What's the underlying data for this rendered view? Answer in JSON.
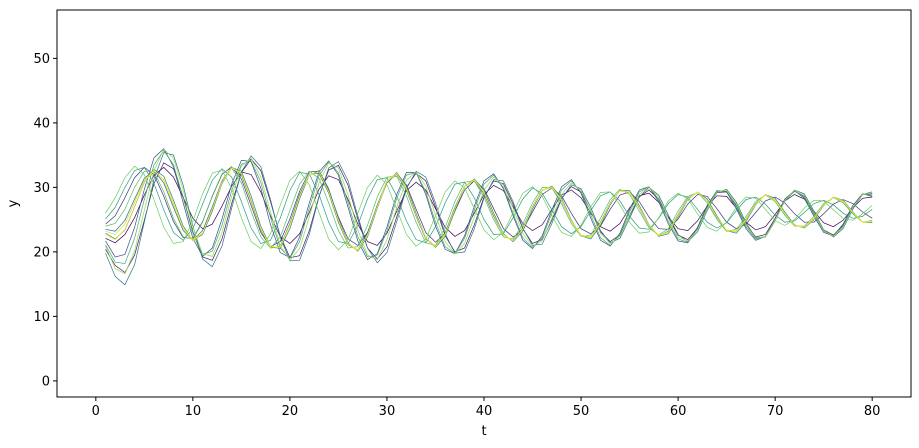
{
  "chart_data": {
    "type": "line",
    "title": "",
    "xlabel": "t",
    "ylabel": "y",
    "xlim": [
      -4,
      84
    ],
    "ylim": [
      -2.5,
      57.5
    ],
    "xticks": [
      0,
      10,
      20,
      30,
      40,
      50,
      60,
      70,
      80
    ],
    "yticks": [
      0,
      10,
      20,
      30,
      40,
      50
    ],
    "grid": false,
    "legend": "none",
    "colormap": "viridis",
    "colormap_stops": [
      "#440154",
      "#3b528b",
      "#21918c",
      "#5ec962",
      "#fde725"
    ],
    "x": [
      1,
      2,
      3,
      4,
      5,
      6,
      7,
      8,
      9,
      10,
      11,
      12,
      13,
      14,
      15,
      16,
      17,
      18,
      19,
      20,
      21,
      22,
      23,
      24,
      25,
      26,
      27,
      28,
      29,
      30,
      31,
      32,
      33,
      34,
      35,
      36,
      37,
      38,
      39,
      40,
      41,
      42,
      43,
      44,
      45,
      46,
      47,
      48,
      49,
      50,
      51,
      52,
      53,
      54,
      55,
      56,
      57,
      58,
      59,
      60,
      61,
      62,
      63,
      64,
      65,
      66,
      67,
      68,
      69,
      70,
      71,
      72,
      73,
      74,
      75,
      76,
      77,
      78,
      79,
      80
    ],
    "series": [
      {
        "values": [
          22.1,
          21.4,
          22.7,
          25.3,
          28.8,
          31.9,
          33.1,
          31.6,
          28.4,
          25.2,
          23.6,
          24.3,
          27.1,
          30.2,
          32.4,
          32.0,
          29.3,
          25.6,
          22.4,
          21.3,
          22.8,
          26.1,
          29.7,
          31.8,
          31.2,
          28.1,
          24.3,
          21.6,
          21.0,
          22.9,
          26.3,
          29.5,
          30.8,
          29.6,
          26.7,
          23.8,
          22.4,
          23.3,
          26.0,
          28.9,
          30.3,
          29.5,
          27.0,
          24.4,
          23.3,
          24.2,
          26.6,
          28.8,
          29.6,
          28.4,
          26.0,
          23.9,
          23.2,
          24.4,
          26.8,
          28.7,
          29.1,
          27.7,
          25.4,
          23.6,
          23.3,
          24.8,
          27.1,
          28.7,
          28.6,
          26.8,
          24.6,
          23.4,
          23.9,
          25.8,
          27.9,
          28.9,
          28.2,
          26.3,
          24.5,
          23.9,
          24.9,
          26.8,
          28.3,
          28.5
        ]
      },
      {
        "values": [
          20.4,
          17.9,
          16.8,
          19.5,
          24.9,
          30.6,
          33.8,
          32.9,
          28.5,
          23.1,
          19.2,
          18.7,
          22.0,
          27.5,
          32.3,
          34.4,
          32.6,
          27.8,
          22.5,
          19.1,
          19.4,
          23.3,
          28.6,
          32.7,
          33.4,
          30.3,
          25.1,
          20.6,
          18.9,
          20.8,
          25.4,
          30.0,
          32.2,
          31.0,
          27.0,
          22.5,
          20.0,
          20.6,
          24.2,
          28.5,
          31.0,
          30.6,
          27.4,
          23.6,
          21.3,
          21.9,
          24.9,
          28.3,
          30.1,
          29.3,
          26.4,
          23.1,
          21.6,
          22.6,
          25.6,
          28.5,
          29.6,
          28.2,
          25.3,
          22.6,
          21.9,
          23.7,
          26.9,
          29.2,
          29.3,
          27.2,
          24.2,
          22.3,
          22.7,
          25.2,
          28.0,
          29.4,
          28.6,
          26.0,
          23.4,
          22.6,
          24.1,
          26.9,
          28.9,
          29.0
        ]
      },
      {
        "values": [
          24.3,
          25.6,
          28.4,
          31.5,
          33.1,
          32.0,
          28.6,
          24.7,
          22.2,
          22.1,
          24.7,
          28.6,
          32.0,
          33.2,
          31.3,
          27.2,
          23.0,
          20.8,
          21.6,
          25.1,
          29.4,
          32.4,
          32.5,
          29.6,
          25.4,
          22.0,
          21.0,
          23.0,
          27.0,
          30.7,
          32.1,
          30.4,
          26.6,
          23.0,
          21.5,
          22.9,
          26.3,
          29.6,
          31.0,
          29.8,
          26.7,
          23.6,
          22.3,
          23.4,
          26.2,
          28.9,
          29.9,
          28.7,
          26.0,
          23.6,
          22.8,
          24.0,
          26.6,
          28.8,
          29.3,
          27.8,
          25.4,
          23.6,
          23.5,
          25.1,
          27.4,
          28.9,
          28.6,
          26.7,
          24.6,
          23.6,
          24.3,
          26.1,
          27.9,
          28.5,
          27.6,
          25.9,
          24.6,
          24.6,
          25.9,
          27.4,
          28.1,
          27.5,
          26.2,
          25.2
        ]
      },
      {
        "values": [
          21.7,
          19.2,
          19.6,
          23.8,
          29.7,
          34.6,
          36.0,
          33.2,
          27.6,
          22.1,
          19.3,
          20.6,
          25.1,
          30.5,
          34.2,
          34.0,
          29.9,
          24.2,
          19.9,
          19.1,
          22.3,
          27.6,
          32.4,
          34.1,
          31.9,
          26.9,
          21.7,
          18.8,
          19.7,
          23.9,
          28.9,
          32.3,
          32.3,
          28.9,
          24.0,
          20.4,
          19.7,
          22.5,
          27.1,
          31.0,
          32.1,
          29.8,
          25.6,
          21.8,
          20.5,
          22.5,
          26.5,
          30.1,
          31.2,
          29.1,
          25.2,
          21.8,
          20.9,
          22.9,
          26.6,
          29.6,
          30.1,
          27.8,
          24.3,
          21.7,
          21.4,
          23.8,
          27.2,
          29.5,
          29.3,
          26.7,
          23.6,
          21.8,
          22.4,
          25.2,
          28.2,
          29.5,
          28.3,
          25.5,
          23.0,
          22.5,
          24.3,
          27.2,
          29.0,
          28.6
        ]
      },
      {
        "values": [
          23.5,
          23.2,
          24.9,
          28.2,
          31.4,
          32.6,
          30.7,
          26.9,
          23.3,
          21.8,
          23.3,
          27.0,
          31.0,
          33.1,
          31.9,
          27.9,
          23.4,
          20.6,
          20.9,
          24.4,
          28.9,
          32.0,
          32.2,
          29.1,
          24.6,
          21.1,
          20.3,
          22.9,
          27.3,
          31.0,
          32.0,
          29.6,
          25.5,
          22.0,
          20.9,
          23.0,
          26.9,
          30.2,
          31.0,
          29.0,
          25.5,
          22.6,
          21.8,
          23.7,
          27.0,
          29.6,
          30.0,
          27.9,
          24.8,
          22.5,
          22.3,
          24.6,
          27.6,
          29.5,
          29.2,
          26.8,
          24.0,
          22.5,
          23.2,
          25.8,
          28.3,
          29.2,
          27.9,
          25.3,
          23.3,
          23.2,
          25.1,
          27.5,
          28.8,
          28.0,
          25.9,
          24.1,
          23.8,
          25.2,
          27.3,
          28.4,
          27.8,
          26.0,
          24.6,
          24.7
        ]
      },
      {
        "values": [
          19.8,
          16.2,
          14.9,
          18.0,
          24.6,
          31.3,
          35.4,
          35.0,
          30.3,
          24.0,
          18.9,
          17.7,
          20.9,
          26.8,
          32.4,
          34.9,
          33.2,
          28.1,
          22.3,
          18.6,
          18.7,
          22.7,
          28.5,
          33.0,
          34.0,
          31.0,
          25.6,
          20.6,
          18.3,
          19.9,
          24.7,
          29.8,
          32.5,
          31.6,
          27.6,
          22.8,
          19.8,
          20.0,
          23.6,
          28.3,
          31.2,
          31.0,
          27.8,
          23.7,
          21.0,
          21.2,
          24.4,
          28.2,
          30.4,
          29.8,
          26.9,
          23.3,
          21.4,
          22.1,
          25.2,
          28.5,
          30.0,
          28.8,
          25.7,
          22.7,
          21.6,
          23.1,
          26.4,
          29.2,
          29.7,
          27.7,
          24.5,
          22.2,
          22.3,
          24.8,
          27.9,
          29.6,
          29.0,
          26.3,
          23.4,
          22.3,
          23.6,
          26.6,
          28.9,
          29.3
        ]
      },
      {
        "values": [
          22.9,
          22.0,
          23.4,
          27.0,
          30.8,
          32.8,
          31.7,
          28.0,
          24.0,
          21.8,
          22.7,
          26.3,
          30.6,
          33.1,
          32.5,
          28.7,
          24.0,
          20.8,
          20.5,
          23.6,
          28.2,
          31.9,
          32.6,
          29.8,
          25.2,
          21.4,
          20.1,
          22.3,
          26.8,
          30.9,
          32.3,
          30.2,
          26.0,
          22.2,
          20.7,
          22.4,
          26.4,
          30.1,
          31.3,
          29.6,
          26.0,
          22.8,
          21.6,
          23.2,
          26.6,
          29.5,
          30.2,
          28.3,
          25.0,
          22.5,
          22.0,
          24.1,
          27.3,
          29.5,
          29.5,
          27.2,
          24.2,
          22.4,
          22.8,
          25.4,
          28.1,
          29.3,
          28.2,
          25.6,
          23.3,
          22.9,
          24.7,
          27.3,
          28.9,
          28.3,
          26.2,
          24.2,
          23.7,
          25.0,
          27.2,
          28.5,
          28.0,
          26.2,
          24.6,
          24.5
        ]
      },
      {
        "values": [
          25.1,
          26.9,
          30.0,
          32.6,
          33.1,
          30.6,
          26.5,
          23.0,
          21.8,
          23.6,
          27.4,
          31.1,
          32.9,
          31.6,
          27.8,
          23.7,
          21.3,
          21.8,
          25.2,
          29.5,
          32.3,
          32.1,
          28.9,
          24.6,
          21.6,
          21.3,
          24.1,
          28.2,
          31.2,
          31.5,
          28.7,
          24.8,
          21.9,
          21.4,
          23.9,
          27.6,
          30.5,
          30.8,
          28.4,
          25.0,
          22.7,
          22.8,
          25.3,
          28.2,
          29.9,
          29.1,
          26.5,
          23.9,
          22.8,
          23.9,
          26.4,
          28.7,
          29.3,
          27.9,
          25.5,
          23.7,
          23.5,
          25.2,
          27.5,
          28.9,
          28.5,
          26.6,
          24.6,
          23.7,
          24.5,
          26.4,
          28.1,
          28.5,
          27.4,
          25.7,
          24.6,
          24.8,
          26.1,
          27.5,
          28.0,
          27.3,
          26.0,
          25.2,
          25.5,
          26.6
        ]
      },
      {
        "values": [
          21.1,
          18.4,
          18.2,
          22.1,
          28.1,
          33.5,
          35.7,
          33.5,
          28.4,
          22.9,
          19.6,
          20.1,
          24.1,
          29.5,
          33.6,
          34.1,
          30.8,
          25.3,
          20.6,
          19.0,
          21.6,
          26.8,
          31.8,
          34.0,
          32.3,
          27.6,
          22.4,
          19.2,
          19.5,
          23.3,
          28.3,
          31.9,
          32.3,
          29.3,
          24.6,
          20.8,
          19.7,
          22.1,
          26.5,
          30.5,
          31.9,
          30.0,
          26.0,
          22.2,
          20.6,
          22.2,
          26.0,
          29.6,
          31.0,
          29.3,
          25.7,
          22.2,
          21.0,
          22.7,
          26.2,
          29.3,
          30.1,
          28.1,
          24.7,
          22.0,
          21.5,
          23.5,
          26.9,
          29.4,
          29.4,
          27.0,
          23.9,
          22.0,
          22.3,
          24.9,
          27.9,
          29.4,
          28.5,
          25.8,
          23.2,
          22.5,
          24.0,
          26.9,
          28.9,
          28.8
        ]
      },
      {
        "values": [
          24.0,
          24.4,
          26.6,
          30.0,
          32.5,
          32.4,
          29.3,
          25.2,
          22.3,
          22.0,
          24.6,
          28.7,
          32.1,
          33.0,
          30.7,
          26.3,
          22.3,
          20.6,
          22.3,
          26.4,
          30.5,
          32.5,
          31.4,
          27.6,
          23.3,
          20.6,
          20.8,
          24.1,
          28.5,
          31.6,
          31.7,
          28.7,
          24.6,
          21.4,
          21.0,
          23.8,
          27.8,
          30.8,
          31.0,
          28.5,
          25.0,
          22.3,
          22.0,
          24.3,
          27.6,
          30.0,
          29.9,
          27.4,
          24.4,
          22.4,
          22.6,
          25.2,
          28.1,
          29.7,
          28.9,
          26.3,
          23.7,
          22.6,
          23.6,
          26.3,
          28.6,
          29.2,
          27.6,
          25.0,
          23.2,
          23.5,
          25.5,
          27.8,
          28.8,
          27.8,
          25.7,
          24.0,
          24.0,
          25.5,
          27.5,
          28.4,
          27.6,
          25.9,
          24.6,
          24.9
        ]
      },
      {
        "values": [
          26.0,
          28.4,
          31.5,
          33.3,
          32.0,
          28.1,
          23.8,
          21.3,
          21.6,
          24.8,
          29.0,
          32.2,
          32.7,
          29.8,
          25.3,
          21.6,
          20.5,
          22.8,
          27.2,
          31.1,
          32.5,
          30.4,
          26.1,
          22.0,
          20.3,
          21.9,
          26.0,
          30.0,
          31.9,
          30.4,
          26.6,
          22.7,
          20.9,
          22.0,
          25.6,
          29.3,
          31.0,
          29.9,
          26.7,
          23.4,
          21.9,
          23.0,
          26.1,
          29.1,
          30.1,
          28.6,
          25.6,
          23.0,
          22.4,
          24.1,
          27.0,
          29.2,
          29.3,
          27.3,
          24.6,
          22.9,
          23.1,
          25.3,
          27.9,
          29.1,
          28.2,
          25.9,
          23.8,
          23.2,
          24.6,
          26.9,
          28.5,
          28.3,
          26.6,
          24.8,
          24.1,
          25.0,
          26.8,
          28.0,
          27.9,
          26.5,
          25.2,
          24.9,
          25.9,
          27.2
        ]
      },
      {
        "values": [
          20.9,
          17.4,
          16.6,
          20.1,
          26.4,
          32.6,
          35.9,
          34.5,
          29.6,
          23.8,
          19.7,
          19.3,
          23.0,
          28.6,
          33.3,
          34.5,
          31.6,
          26.2,
          21.0,
          18.7,
          20.5,
          25.4,
          30.7,
          33.8,
          33.0,
          28.8,
          23.4,
          19.5,
          18.8,
          21.9,
          26.9,
          31.1,
          32.4,
          30.2,
          25.7,
          21.6,
          19.7,
          21.3,
          25.4,
          29.6,
          31.6,
          30.4,
          26.8,
          22.9,
          20.8,
          21.7,
          25.2,
          28.9,
          30.7,
          29.6,
          26.4,
          22.9,
          21.3,
          22.4,
          25.7,
          28.9,
          30.1,
          28.5,
          25.2,
          22.3,
          21.7,
          23.4,
          26.7,
          29.3,
          29.6,
          27.4,
          24.2,
          22.1,
          22.4,
          24.9,
          28.0,
          29.6,
          28.8,
          26.1,
          23.3,
          22.4,
          23.8,
          26.8,
          28.9,
          29.1
        ]
      },
      {
        "values": [
          23.2,
          22.7,
          24.3,
          27.7,
          31.1,
          32.7,
          31.1,
          27.3,
          23.6,
          21.7,
          22.9,
          26.7,
          30.8,
          33.1,
          32.2,
          28.2,
          23.6,
          20.6,
          20.7,
          24.1,
          28.6,
          32.0,
          32.4,
          29.4,
          24.8,
          21.2,
          20.2,
          22.6,
          27.1,
          31.0,
          32.2,
          29.9,
          25.7,
          22.1,
          20.8,
          22.7,
          26.7,
          30.2,
          31.2,
          29.3,
          25.7,
          22.6,
          21.7,
          23.5,
          26.9,
          29.6,
          30.1,
          28.1,
          24.8,
          22.5,
          22.2,
          24.4,
          27.5,
          29.5,
          29.3,
          27.0,
          24.1,
          22.5,
          23.0,
          25.6,
          28.2,
          29.3,
          28.0,
          25.4,
          23.3,
          23.1,
          24.9,
          27.4,
          28.9,
          28.1,
          26.0,
          24.1,
          23.8,
          25.1,
          27.3,
          28.5,
          27.9,
          26.1,
          24.6,
          24.6
        ]
      },
      {
        "values": [
          22.6,
          21.9,
          23.5,
          27.1,
          30.9,
          32.6,
          31.2,
          27.6,
          23.7,
          21.9,
          22.9,
          26.6,
          30.8,
          33.0,
          32.1,
          28.1,
          23.6,
          20.8,
          20.8,
          24.2,
          28.6,
          31.9,
          32.4,
          29.3,
          24.9,
          21.3,
          20.3,
          22.6,
          27.0,
          30.9,
          32.1,
          29.8,
          25.7,
          22.2,
          20.9,
          22.8,
          26.7,
          30.1,
          31.1,
          29.2,
          25.7,
          22.7,
          21.8,
          23.5,
          26.9,
          29.5,
          30.0,
          28.0,
          24.9,
          22.6,
          22.3,
          24.5,
          27.5,
          29.4,
          29.2,
          26.9,
          24.1,
          22.6,
          23.1,
          25.7,
          28.2,
          29.2,
          27.9,
          25.4,
          23.4,
          23.2,
          25.0,
          27.4,
          28.8,
          28.0,
          25.9,
          24.1,
          23.9,
          25.2,
          27.3,
          28.4,
          27.8,
          26.1,
          24.7,
          24.7
        ]
      }
    ],
    "sampled_note": ""
  }
}
